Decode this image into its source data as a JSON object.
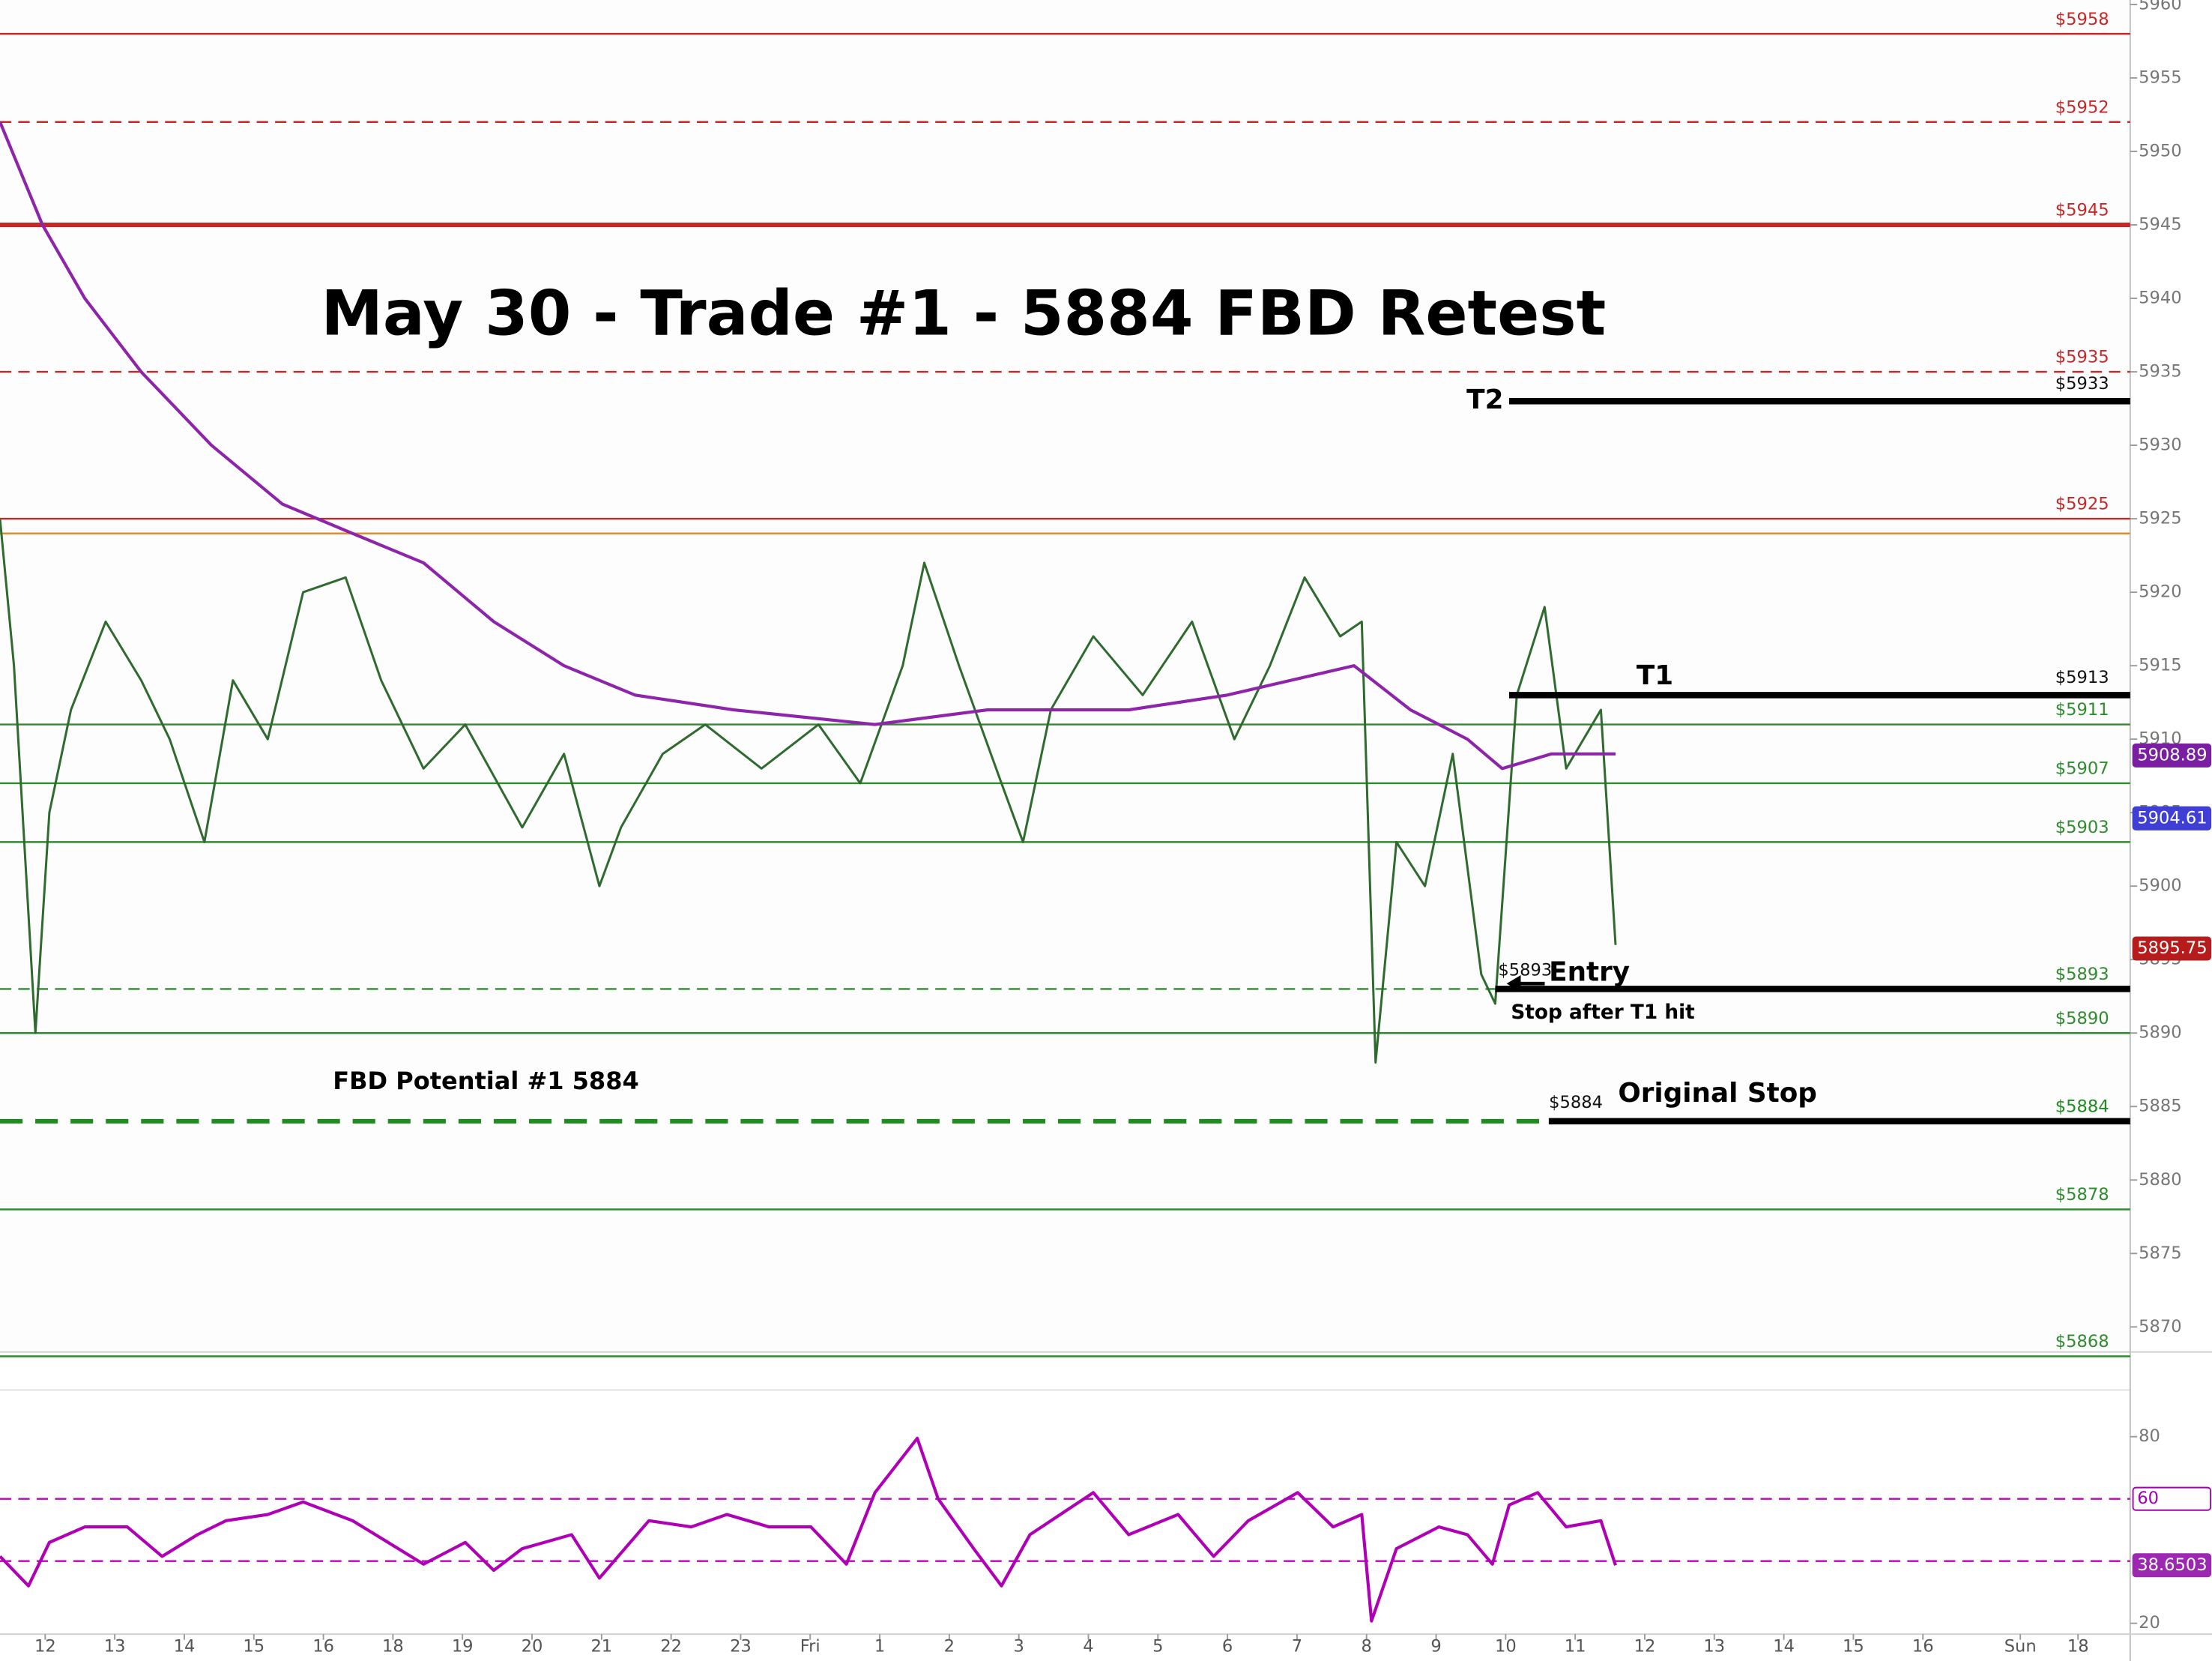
{
  "chart_data": [
    {
      "type": "line",
      "title": "May 30 - Trade #1 - 5884 FBD Retest",
      "xlim": [
        -0.65,
        29.98
      ],
      "ylim": [
        5868.3,
        5960.3
      ],
      "xticks": [
        {
          "value": 0,
          "label": "12"
        },
        {
          "value": 1,
          "label": "13"
        },
        {
          "value": 2,
          "label": "14"
        },
        {
          "value": 3,
          "label": "15"
        },
        {
          "value": 4,
          "label": "16"
        },
        {
          "value": 5,
          "label": "18"
        },
        {
          "value": 6,
          "label": "19"
        },
        {
          "value": 7,
          "label": "20"
        },
        {
          "value": 8,
          "label": "21"
        },
        {
          "value": 9,
          "label": "22"
        },
        {
          "value": 10,
          "label": "23"
        },
        {
          "value": 11,
          "label": "Fri"
        },
        {
          "value": 12,
          "label": "1"
        },
        {
          "value": 13,
          "label": "2"
        },
        {
          "value": 14,
          "label": "3"
        },
        {
          "value": 15,
          "label": "4"
        },
        {
          "value": 16,
          "label": "5"
        },
        {
          "value": 17,
          "label": "6"
        },
        {
          "value": 18,
          "label": "7"
        },
        {
          "value": 19,
          "label": "8"
        },
        {
          "value": 20,
          "label": "9"
        },
        {
          "value": 21,
          "label": "10"
        },
        {
          "value": 22,
          "label": "11"
        },
        {
          "value": 23,
          "label": "12"
        },
        {
          "value": 24,
          "label": "13"
        },
        {
          "value": 25,
          "label": "14"
        },
        {
          "value": 26,
          "label": "15"
        },
        {
          "value": 27,
          "label": "16"
        },
        {
          "value": 28.4,
          "label": "Sun"
        },
        {
          "value": 29.23,
          "label": "18"
        }
      ],
      "yticks": [
        5870,
        5875,
        5880,
        5885,
        5890,
        5895,
        5900,
        5905,
        5910,
        5915,
        5920,
        5925,
        5930,
        5935,
        5940,
        5945,
        5950,
        5955,
        5960
      ],
      "series": [
        {
          "color": "#2f6b2f",
          "x": [
            -0.65,
            -0.45,
            -0.14,
            0.06,
            0.37,
            0.87,
            1.38,
            1.79,
            2.29,
            2.7,
            3.2,
            3.71,
            4.32,
            4.83,
            5.44,
            6.04,
            6.86,
            7.46,
            7.97,
            8.28,
            8.88,
            9.49,
            10.3,
            11.12,
            11.72,
            12.33,
            12.64,
            13.14,
            13.75,
            14.06,
            14.46,
            15.07,
            15.78,
            16.49,
            17.1,
            17.61,
            18.11,
            18.62,
            18.93,
            19.13,
            19.43,
            19.84,
            20.24,
            20.65,
            20.85,
            21.16,
            21.56,
            21.87,
            22.37,
            22.58
          ],
          "values": [
            5925,
            5915,
            5890,
            5905,
            5912,
            5918,
            5914,
            5910,
            5903,
            5914,
            5910,
            5920,
            5921,
            5914,
            5908,
            5911,
            5904,
            5909,
            5900,
            5904,
            5909,
            5911,
            5908,
            5911,
            5907,
            5915,
            5922,
            5915,
            5907,
            5903,
            5912,
            5917,
            5913,
            5918,
            5910,
            5915,
            5921,
            5917,
            5918,
            5888,
            5903,
            5900,
            5909,
            5894,
            5892,
            5913,
            5919,
            5908,
            5912,
            5896
          ]
        },
        {
          "color": "#8e24aa",
          "x": [
            -0.65,
            -0.04,
            0.57,
            1.38,
            2.39,
            3.41,
            4.42,
            5.44,
            6.45,
            7.46,
            8.48,
            9.9,
            11.93,
            13.55,
            15.58,
            17.0,
            18.82,
            19.63,
            20.45,
            20.95,
            21.66,
            22.58
          ],
          "values": [
            5952,
            5945,
            5940,
            5935,
            5930,
            5926,
            5924,
            5922,
            5918,
            5915,
            5913,
            5912,
            5911,
            5912,
            5912,
            5913,
            5915,
            5912,
            5910,
            5908,
            5909,
            5909
          ]
        }
      ],
      "levels": [
        {
          "value": 5958,
          "label": "$5958",
          "color": "#c62828",
          "dash": false,
          "heavy": false
        },
        {
          "value": 5952,
          "label": "$5952",
          "color": "#c62828",
          "dash": true,
          "heavy": false
        },
        {
          "value": 5945,
          "label": "$5945",
          "color": "#c62828",
          "dash": false,
          "heavy": true
        },
        {
          "value": 5935,
          "label": "$5935",
          "color": "#c62828",
          "dash": true,
          "heavy": false
        },
        {
          "value": 5925,
          "label": "$5925",
          "color": "#c62828",
          "dash": false,
          "heavy": false
        },
        {
          "value": 5924,
          "color": "#e08a1e",
          "dash": false,
          "heavy": false
        },
        {
          "value": 5911,
          "label": "$5911",
          "color": "#2e8b2e",
          "dash": false,
          "heavy": false
        },
        {
          "value": 5907,
          "label": "$5907",
          "color": "#2e8b2e",
          "dash": false,
          "heavy": false
        },
        {
          "value": 5903,
          "label": "$5903",
          "color": "#2e8b2e",
          "dash": false,
          "heavy": false
        },
        {
          "value": 5893,
          "label": "$5893",
          "color": "#2e8b2e",
          "dash": true,
          "heavy": false
        },
        {
          "value": 5890,
          "label": "$5890",
          "color": "#2e8b2e",
          "dash": false,
          "heavy": false
        },
        {
          "value": 5884,
          "label": "$5884",
          "color": "#1e8c1e",
          "dash": true,
          "heavy": true,
          "x_end": 21.62
        },
        {
          "value": 5878,
          "label": "$5878",
          "color": "#2e8b2e",
          "dash": false,
          "heavy": false
        },
        {
          "value": 5868,
          "label": "$5868",
          "color": "#2e8b2e",
          "dash": false,
          "heavy": false
        }
      ],
      "markers": [
        {
          "value": 5908.89,
          "color": "#7b1fa2",
          "outline": false
        },
        {
          "value": 5904.61,
          "color": "#3f3fd6",
          "outline": false
        },
        {
          "value": 5895.75,
          "color": "#b71c1c",
          "outline": false
        }
      ],
      "trade_lines": [
        {
          "label": "T2",
          "value": 5933,
          "x_start": 21.05,
          "tag": "$5933"
        },
        {
          "label": "T1",
          "value": 5913,
          "x_start": 21.05,
          "tag": "$5913"
        },
        {
          "label": "Entry",
          "value": 5893,
          "x_start": 20.85,
          "tag": "$5893",
          "note": "Stop after T1 hit"
        },
        {
          "label": "Original Stop",
          "value": 5884,
          "x_start": 21.62,
          "tag": "$5884"
        }
      ],
      "annotations": [
        "FBD Potential #1 5884"
      ]
    },
    {
      "type": "line",
      "xlim": [
        -0.65,
        29.98
      ],
      "ylim": [
        16.5,
        95
      ],
      "yticks": [
        20,
        80
      ],
      "series": [
        {
          "color": "#b000b5",
          "x": [
            -0.65,
            -0.24,
            0.06,
            0.57,
            1.18,
            1.68,
            2.19,
            2.6,
            3.2,
            3.71,
            4.42,
            4.93,
            5.44,
            6.04,
            6.45,
            6.86,
            7.57,
            7.97,
            8.68,
            9.29,
            9.8,
            10.41,
            11.01,
            11.52,
            11.93,
            12.54,
            12.84,
            13.35,
            13.75,
            14.16,
            15.07,
            15.58,
            16.29,
            16.8,
            17.3,
            18.01,
            18.52,
            18.93,
            19.07,
            19.43,
            20.04,
            20.45,
            20.81,
            21.05,
            21.46,
            21.87,
            22.37,
            22.58
          ],
          "values": [
            41.5,
            32,
            46,
            51,
            51,
            41.5,
            48.5,
            53,
            55,
            59,
            53,
            46,
            39,
            46,
            37,
            44,
            48.5,
            34.5,
            53,
            51,
            55,
            51,
            51,
            39,
            62,
            79.5,
            60,
            44,
            32,
            48.5,
            62,
            48.5,
            55,
            41.5,
            53,
            62,
            51,
            55,
            20.7,
            44,
            51,
            48.5,
            39,
            58,
            62,
            51,
            53,
            38.6503
          ]
        }
      ],
      "levels": [
        {
          "value": 60,
          "color": "#c000c0",
          "dash": true,
          "heavy": false
        },
        {
          "value": 40,
          "color": "#c000c0",
          "dash": true,
          "heavy": false
        }
      ],
      "markers": [
        {
          "value": 60,
          "color": "#a000b0",
          "outline": true
        },
        {
          "value": 38.6503,
          "color": "#9c27b0",
          "outline": false
        }
      ]
    }
  ]
}
